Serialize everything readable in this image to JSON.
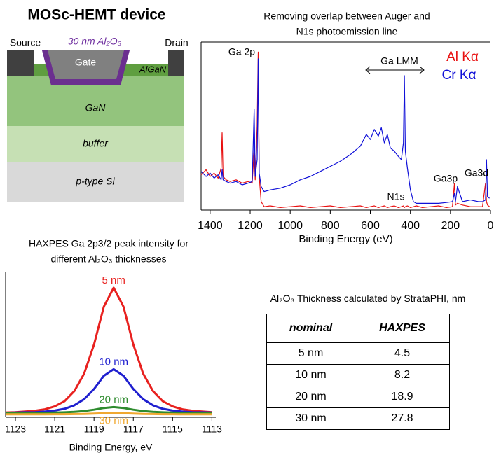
{
  "diagram": {
    "title": "MOSc-HEMT device",
    "source": "Source",
    "oxide": "30 nm Al₂O₃",
    "drain": "Drain",
    "gate": "Gate",
    "layers": [
      "AlGaN",
      "GaN",
      "buffer",
      "p-type Si"
    ]
  },
  "chart_data": [
    {
      "type": "line",
      "title": [
        "Removing overlap between Auger and",
        "N1s photoemission line"
      ],
      "x": [
        1445,
        1420,
        1400,
        1380,
        1360,
        1345,
        1340,
        1335,
        1320,
        1300,
        1270,
        1240,
        1210,
        1190,
        1180,
        1175,
        1165,
        1160,
        1155,
        1145,
        1130,
        1100,
        1050,
        1000,
        950,
        900,
        850,
        800,
        750,
        700,
        650,
        620,
        600,
        580,
        560,
        545,
        530,
        515,
        500,
        480,
        460,
        445,
        435,
        430,
        425,
        415,
        400,
        385,
        370,
        340,
        300,
        260,
        220,
        190,
        180,
        175,
        165,
        140,
        100,
        60,
        40,
        25,
        20,
        15,
        5
      ],
      "series": [
        {
          "name": "Al Kα",
          "color": "#e81010",
          "values": [
            21,
            24,
            20,
            22,
            19,
            25,
            46,
            20,
            18,
            17,
            18,
            16,
            17,
            16,
            36,
            18,
            50,
            94,
            20,
            5,
            2,
            2.5,
            1.5,
            2,
            2.5,
            1.5,
            2,
            2.5,
            1.5,
            2,
            2.5,
            1.5,
            2,
            2.5,
            1.5,
            2,
            2.5,
            1.5,
            2,
            2.5,
            1.5,
            2,
            2.5,
            1.5,
            2,
            2.5,
            1.5,
            2,
            2.5,
            1.5,
            2,
            2.5,
            1.5,
            2,
            16,
            3,
            4,
            3,
            2,
            2,
            2,
            16,
            5,
            3,
            2
          ]
        },
        {
          "name": "Cr Kα",
          "color": "#1010d8",
          "values": [
            23,
            20,
            22,
            19,
            21,
            18,
            24,
            18,
            17,
            16,
            17,
            15,
            16,
            17,
            60,
            20,
            30,
            90,
            22,
            14,
            11,
            12,
            13,
            15,
            18,
            20,
            23,
            26,
            29,
            33,
            38,
            45,
            42,
            48,
            44,
            49,
            40,
            45,
            37,
            35,
            32,
            30,
            40,
            80,
            35,
            25,
            12,
            5,
            4,
            4,
            4,
            4,
            4.5,
            5,
            10,
            5,
            14,
            5,
            6,
            5,
            5,
            6,
            30,
            8,
            7
          ]
        }
      ],
      "xlim": [
        1445,
        0
      ],
      "xticks": [
        1400,
        1200,
        1000,
        800,
        600,
        400,
        200,
        0
      ],
      "ylim": [
        0,
        100
      ],
      "x_label": "Binding Energy (eV)",
      "annotations": [
        "Ga 2p",
        "Ga LMM",
        "N1s",
        "Ga3p",
        "Ga3d"
      ]
    },
    {
      "type": "line",
      "title": [
        "HAXPES Ga 2p3/2 peak intensity for",
        "different Al₂O₃ thicknesses"
      ],
      "x": [
        1123.5,
        1123,
        1122.5,
        1122,
        1121.5,
        1121,
        1120.5,
        1120,
        1119.5,
        1119,
        1118.5,
        1118,
        1117.5,
        1117,
        1116.5,
        1116,
        1115.5,
        1115,
        1114.5,
        1114,
        1113.5,
        1113
      ],
      "series": [
        {
          "name": "5 nm",
          "color": "#e8211f",
          "values": [
            3.3,
            3.5,
            4,
            4.5,
            5.5,
            7.5,
            11,
            18,
            30,
            50,
            76,
            89,
            76,
            50,
            30,
            18,
            11,
            7.5,
            5.5,
            4.5,
            4,
            3.5
          ]
        },
        {
          "name": "10 nm",
          "color": "#1f1fcf",
          "values": [
            3.1,
            3.2,
            3.4,
            3.5,
            3.9,
            4.6,
            5.8,
            8.2,
            12.4,
            19.4,
            28.5,
            33,
            28.5,
            19.4,
            12.4,
            8.2,
            5.8,
            4.6,
            3.9,
            3.5,
            3.4,
            3.2
          ]
        },
        {
          "name": "20 nm",
          "color": "#2e8b2e",
          "values": [
            3,
            3,
            3,
            3.1,
            3.1,
            3.2,
            3.4,
            3.7,
            4.3,
            5.2,
            6.4,
            7,
            6.4,
            5.2,
            4.3,
            3.7,
            3.4,
            3.2,
            3.1,
            3.1,
            3,
            3
          ]
        },
        {
          "name": "30 nm",
          "color": "#f0a830",
          "values": [
            2,
            2,
            2,
            2,
            2,
            2.1,
            2.1,
            2.2,
            2.3,
            2.5,
            2.8,
            3,
            2.8,
            2.5,
            2.3,
            2.2,
            2.1,
            2.1,
            2,
            2,
            2,
            2
          ]
        }
      ],
      "xlim": [
        1123.5,
        1112.8
      ],
      "xticks": [
        1123,
        1121,
        1119,
        1117,
        1115,
        1113
      ],
      "ylim": [
        0,
        100
      ],
      "x_label": "Binding Energy, eV"
    }
  ],
  "table": {
    "caption": "Al₂O₃ Thickness calculated by StrataPHI, nm",
    "header": [
      "nominal",
      "HAXPES"
    ],
    "rows": [
      [
        "5 nm",
        "4.5"
      ],
      [
        "10 nm",
        "8.2"
      ],
      [
        "20 nm",
        "18.9"
      ],
      [
        "30 nm",
        "27.8"
      ]
    ]
  }
}
